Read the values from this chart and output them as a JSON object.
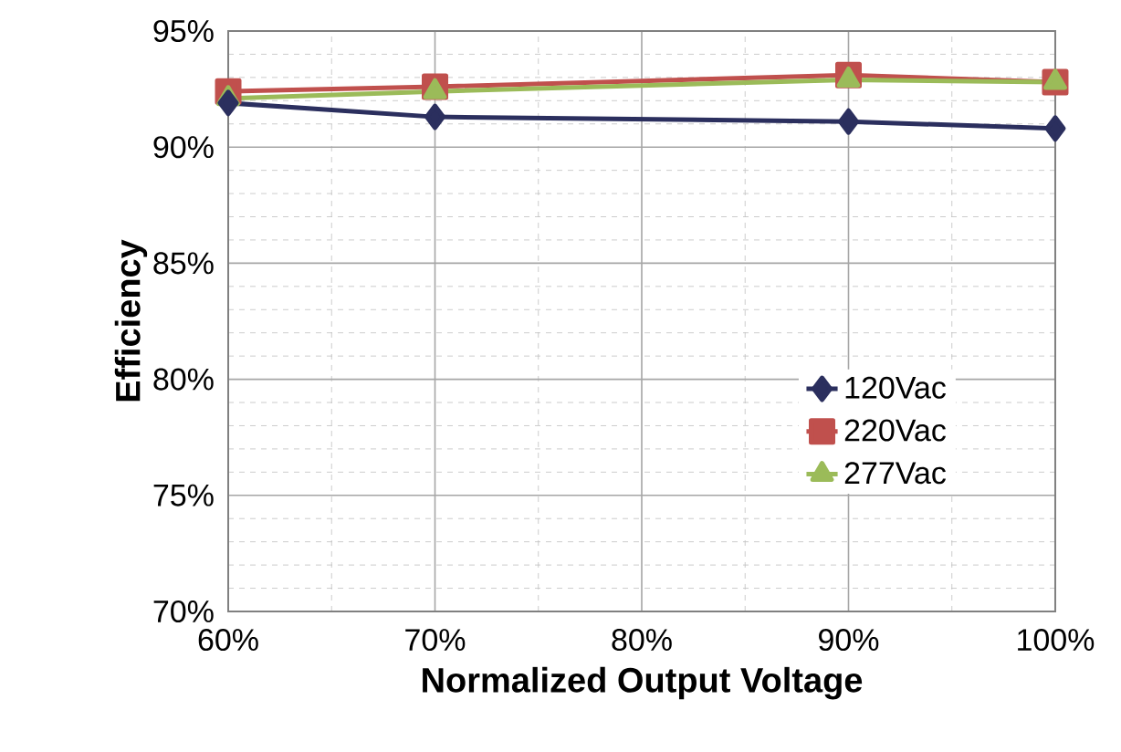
{
  "chart_data": {
    "type": "line",
    "xlabel": "Normalized Output Voltage",
    "ylabel": "Efficiency",
    "x": [
      60,
      70,
      90,
      100
    ],
    "series": [
      {
        "name": "120Vac",
        "color": "#2b2f5e",
        "marker": "diamond",
        "values": [
          91.9,
          91.3,
          91.1,
          90.8
        ]
      },
      {
        "name": "220Vac",
        "color": "#c0504d",
        "marker": "square",
        "values": [
          92.4,
          92.6,
          93.1,
          92.8
        ]
      },
      {
        "name": "277Vac",
        "color": "#9bbb59",
        "marker": "triangle",
        "values": [
          92.1,
          92.4,
          92.9,
          92.8
        ]
      }
    ],
    "xlim": [
      60,
      100
    ],
    "ylim": [
      70,
      95
    ],
    "xticks": [
      {
        "value": 60,
        "label": "60%"
      },
      {
        "value": 70,
        "label": "70%"
      },
      {
        "value": 80,
        "label": "80%"
      },
      {
        "value": 90,
        "label": "90%"
      },
      {
        "value": 100,
        "label": "100%"
      }
    ],
    "yticks": [
      {
        "value": 70,
        "label": "70%"
      },
      {
        "value": 75,
        "label": "75%"
      },
      {
        "value": 80,
        "label": "80%"
      },
      {
        "value": 85,
        "label": "85%"
      },
      {
        "value": 90,
        "label": "90%"
      },
      {
        "value": 95,
        "label": "95%"
      }
    ],
    "grid": true,
    "legend": "right",
    "line_style": "solid"
  }
}
